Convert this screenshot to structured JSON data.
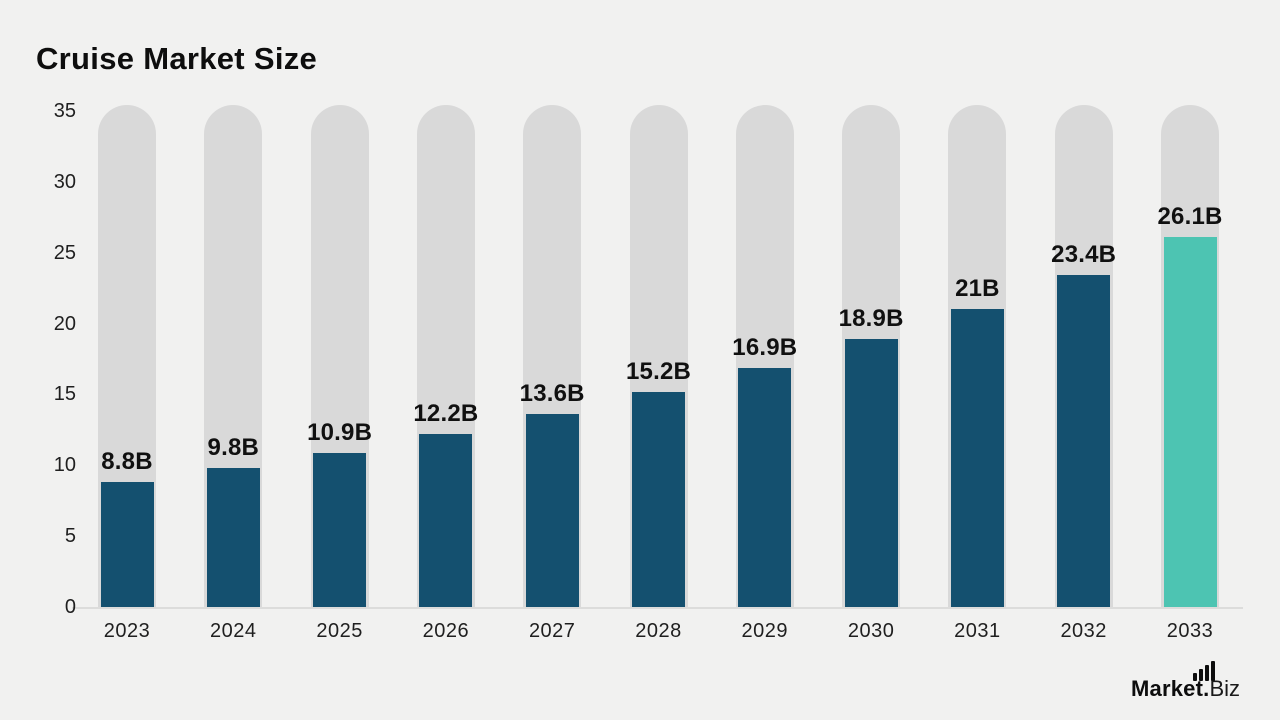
{
  "title": "Cruise Market Size",
  "logo": {
    "bold": "Market.",
    "light": "Biz"
  },
  "chart_data": {
    "type": "bar",
    "title": "Cruise Market Size",
    "categories": [
      "2023",
      "2024",
      "2025",
      "2026",
      "2027",
      "2028",
      "2029",
      "2030",
      "2031",
      "2032",
      "2033"
    ],
    "values": [
      8.8,
      9.8,
      10.9,
      12.2,
      13.6,
      15.2,
      16.9,
      18.9,
      21,
      23.4,
      26.1
    ],
    "value_labels": [
      "8.8B",
      "9.8B",
      "10.9B",
      "12.2B",
      "13.6B",
      "15.2B",
      "16.9B",
      "18.9B",
      "21B",
      "23.4B",
      "26.1B"
    ],
    "unit": "B",
    "ylim": [
      0,
      35
    ],
    "yticks": [
      0,
      5,
      10,
      15,
      20,
      25,
      30,
      35
    ],
    "grid": false,
    "legend": false,
    "highlight_index": 10,
    "colors": {
      "bar": "#14506f",
      "highlight": "#4dc4b2",
      "track": "#d9d9d9",
      "background": "#f1f1f0",
      "label": "#101010"
    }
  }
}
